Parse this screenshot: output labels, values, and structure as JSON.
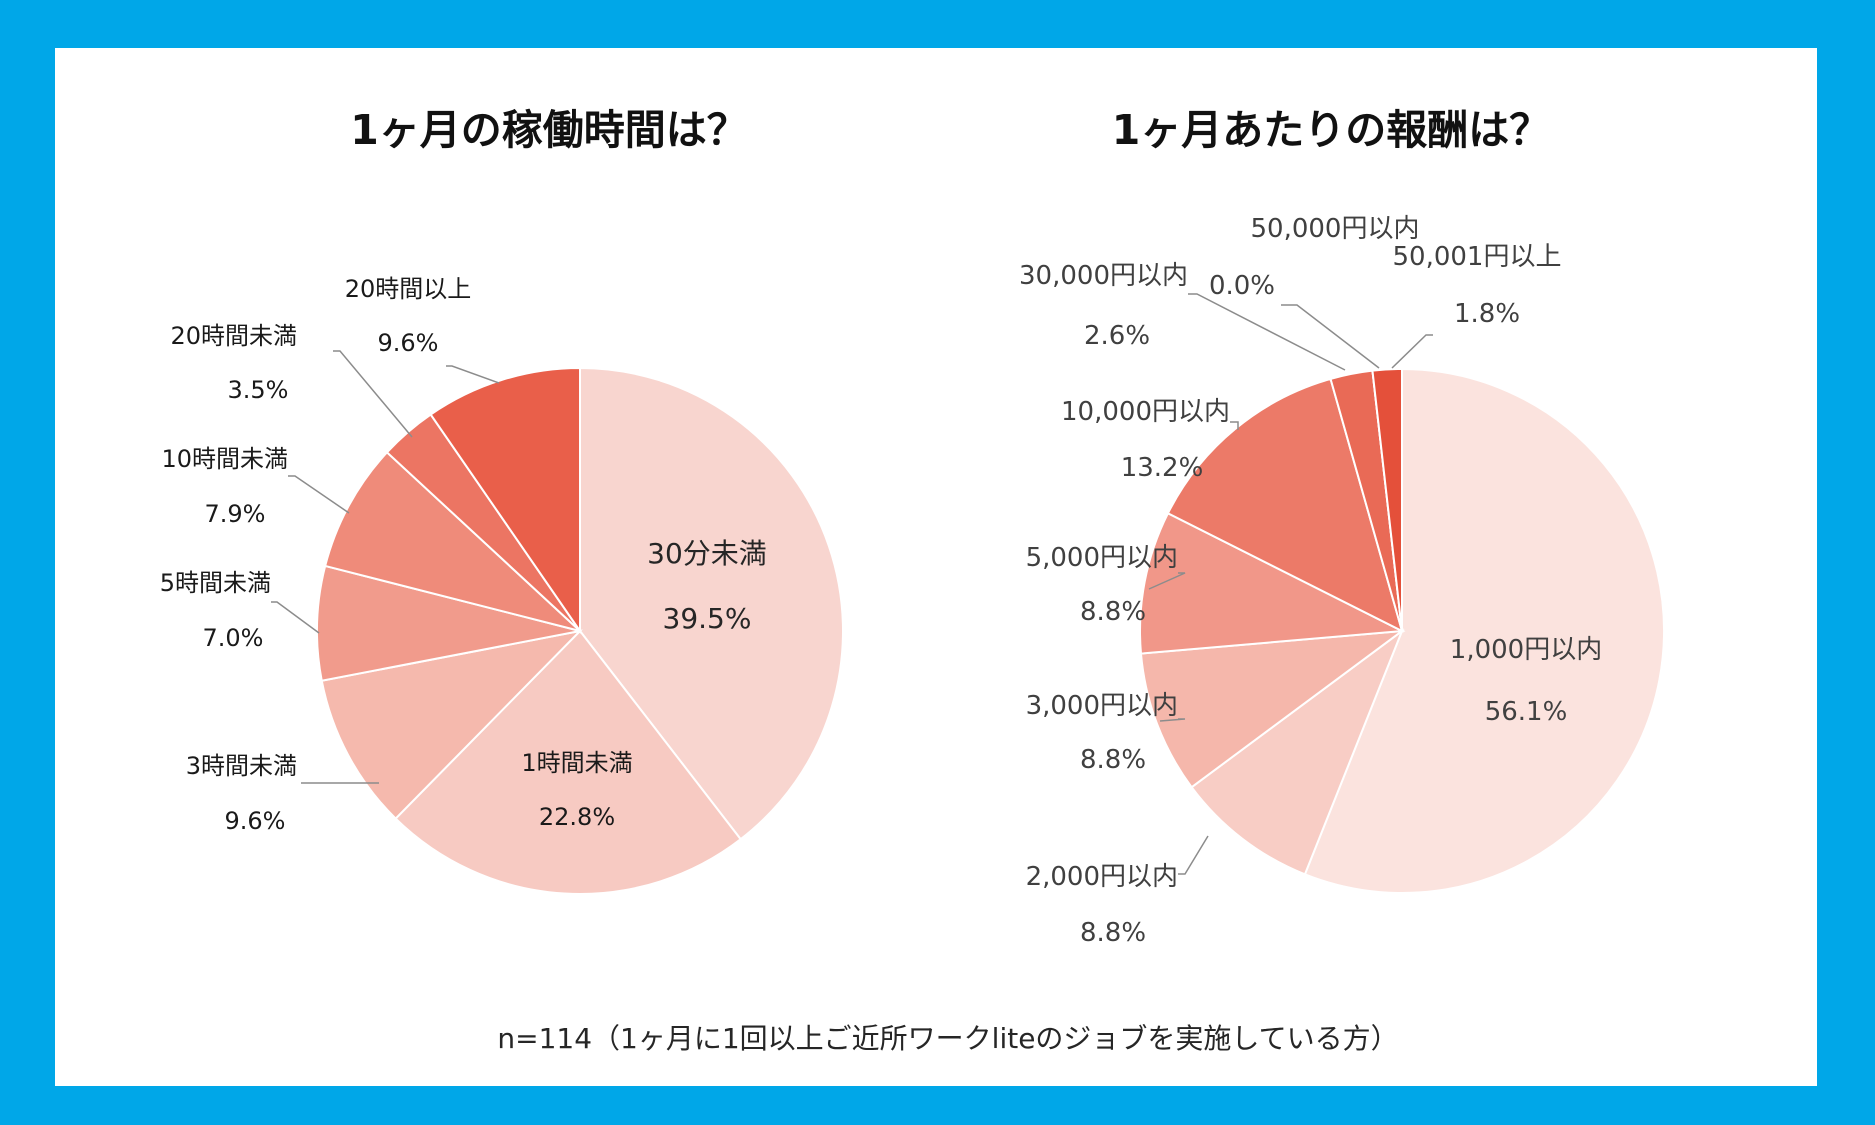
{
  "colors": {
    "background": "#00a7e8",
    "panel": "#ffffff",
    "slice_stroke": "#ffffff",
    "leader": "#8c8c8c"
  },
  "chart_data": [
    {
      "type": "pie",
      "title": "1ヶ月の稼働時間は？",
      "start": "12 o'clock, clockwise",
      "slices": [
        {
          "label": "30分未満",
          "value": 39.5,
          "value_label": "39.5%",
          "color": "#f8d5cf"
        },
        {
          "label": "1時間未満",
          "value": 22.8,
          "value_label": "22.8%",
          "color": "#f7cac2"
        },
        {
          "label": "3時間未満",
          "value": 9.6,
          "value_label": "9.6%",
          "color": "#f5b9ad"
        },
        {
          "label": "5時間未満",
          "value": 7.0,
          "value_label": "7.0%",
          "color": "#f19b8c"
        },
        {
          "label": "10時間未満",
          "value": 7.9,
          "value_label": "7.9%",
          "color": "#ef8b7a"
        },
        {
          "label": "20時間未満",
          "value": 3.5,
          "value_label": "3.5%",
          "color": "#ec7563"
        },
        {
          "label": "20時間以上",
          "value": 9.6,
          "value_label": "9.6%",
          "color": "#e95f4a"
        }
      ]
    },
    {
      "type": "pie",
      "title": "1ヶ月あたりの報酬は？",
      "start": "12 o'clock, clockwise",
      "slices": [
        {
          "label": "1,000円以内",
          "value": 56.1,
          "value_label": "56.1%",
          "color": "#fbe3de"
        },
        {
          "label": "2,000円以内",
          "value": 8.8,
          "value_label": "8.8%",
          "color": "#f8cdc5"
        },
        {
          "label": "3,000円以内",
          "value": 8.8,
          "value_label": "8.8%",
          "color": "#f5b7ab"
        },
        {
          "label": "5,000円以内",
          "value": 8.8,
          "value_label": "8.8%",
          "color": "#f19789"
        },
        {
          "label": "10,000円以内",
          "value": 13.2,
          "value_label": "13.2%",
          "color": "#ec7a68"
        },
        {
          "label": "30,000円以内",
          "value": 2.6,
          "value_label": "2.6%",
          "color": "#e96a56"
        },
        {
          "label": "50,000円以内",
          "value": 0.0,
          "value_label": "0.0%",
          "color": "#e75a45"
        },
        {
          "label": "50,001円以上",
          "value": 1.8,
          "value_label": "1.8%",
          "color": "#e4503a"
        }
      ]
    }
  ],
  "footnote": "n=114（1ヶ月に1回以上ご近所ワークliteのジョブを実施している方）"
}
